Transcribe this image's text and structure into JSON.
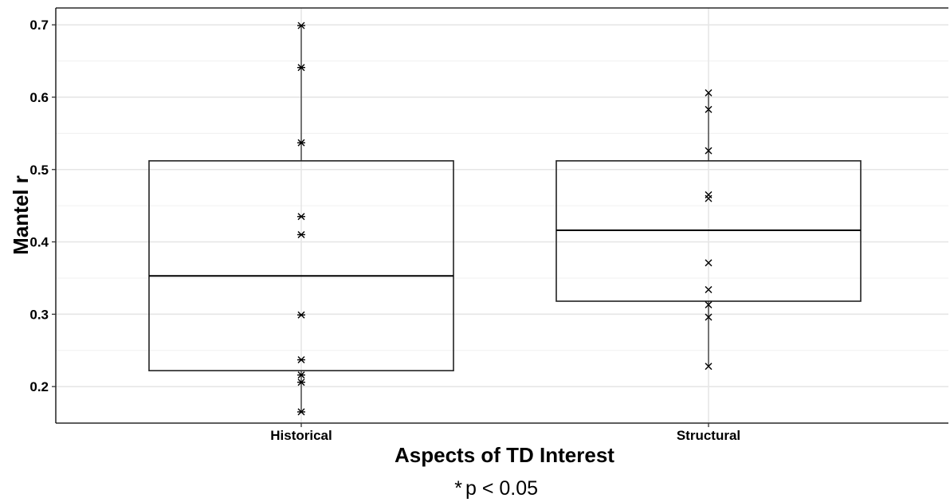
{
  "chart_data": {
    "type": "box",
    "xlabel": "Aspects of TD Interest",
    "ylabel": "Mantel r",
    "ylim": [
      0.14,
      0.72
    ],
    "yticks": [
      0.2,
      0.3,
      0.4,
      0.5,
      0.6,
      0.7
    ],
    "ytick_labels": [
      "0.2",
      "0.3",
      "0.4",
      "0.5",
      "0.6",
      "0.7"
    ],
    "grid": true,
    "footnote_symbol": "*",
    "footnote_text": "p < 0.05",
    "groups": [
      {
        "category": "Historical",
        "box": {
          "q1": 0.222,
          "median": 0.353,
          "q3": 0.512,
          "whisker_low": 0.165,
          "whisker_high": 0.699
        },
        "points": [
          0.699,
          0.641,
          0.537,
          0.435,
          0.41,
          0.299,
          0.237,
          0.216,
          0.206,
          0.165
        ],
        "marker": "asterisk"
      },
      {
        "category": "Structural",
        "box": {
          "q1": 0.318,
          "median": 0.416,
          "q3": 0.512,
          "whisker_low": 0.228,
          "whisker_high": 0.606
        },
        "points": [
          0.606,
          0.583,
          0.526,
          0.465,
          0.46,
          0.371,
          0.334,
          0.313,
          0.296,
          0.228
        ],
        "marker": "x"
      }
    ]
  }
}
